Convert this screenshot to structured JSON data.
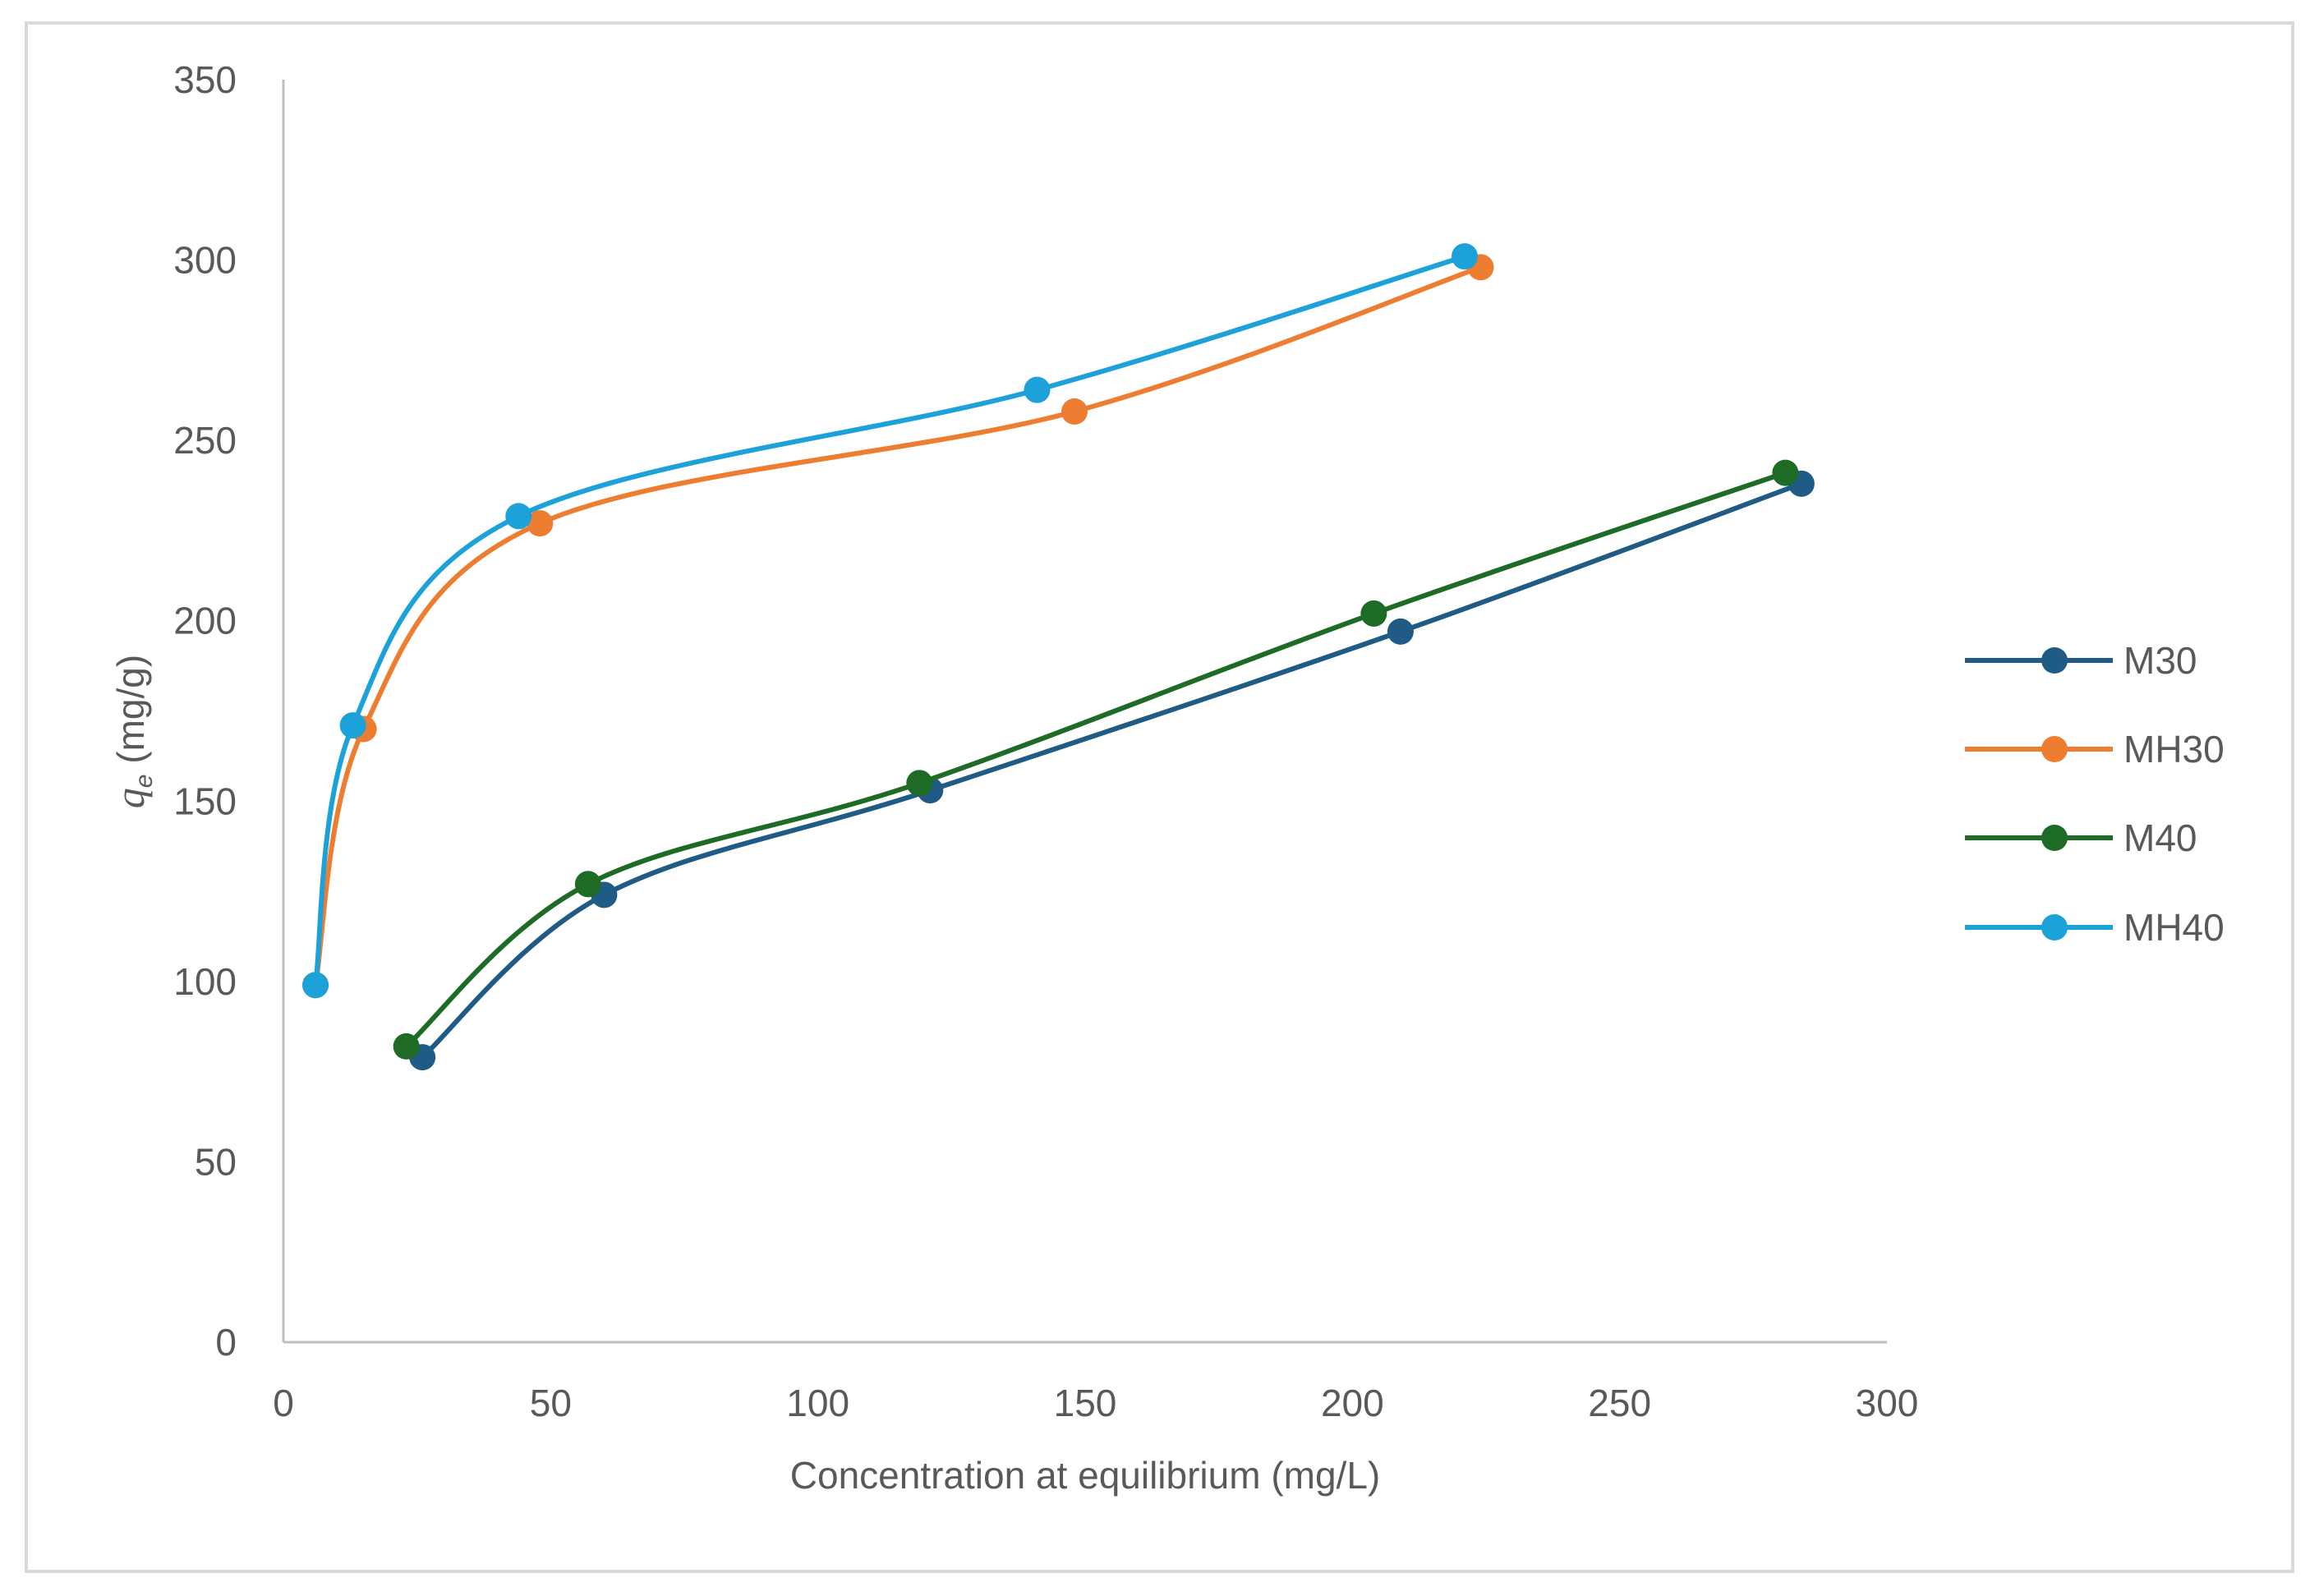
{
  "chart_data": {
    "type": "line",
    "title": "",
    "xlabel": "Concentration at equilibrium (mg/L)",
    "ylabel_main": "q",
    "ylabel_sub": "e",
    "ylabel_unit": " (mg/g)",
    "xlim": [
      0,
      300
    ],
    "ylim": [
      0,
      350
    ],
    "x_ticks": [
      0,
      50,
      100,
      150,
      200,
      250,
      300
    ],
    "y_ticks": [
      0,
      50,
      100,
      150,
      200,
      250,
      300,
      350
    ],
    "grid": false,
    "legend_position": "right",
    "smooth": true,
    "series": [
      {
        "name": "M30",
        "color": "#1f5b85",
        "points": [
          [
            26,
            79
          ],
          [
            60,
            124
          ],
          [
            121,
            153
          ],
          [
            209,
            197
          ],
          [
            284,
            238
          ]
        ]
      },
      {
        "name": "MH30",
        "color": "#ed7d31",
        "points": [
          [
            6,
            99
          ],
          [
            15,
            170
          ],
          [
            48,
            227
          ],
          [
            148,
            258
          ],
          [
            224,
            298
          ]
        ]
      },
      {
        "name": "M40",
        "color": "#1e6b26",
        "points": [
          [
            23,
            82
          ],
          [
            57,
            127
          ],
          [
            119,
            155
          ],
          [
            204,
            202
          ],
          [
            281,
            241
          ]
        ]
      },
      {
        "name": "MH40",
        "color": "#1ca1d9",
        "points": [
          [
            6,
            99
          ],
          [
            13,
            171
          ],
          [
            44,
            229
          ],
          [
            141,
            264
          ],
          [
            221,
            301
          ]
        ]
      }
    ]
  }
}
